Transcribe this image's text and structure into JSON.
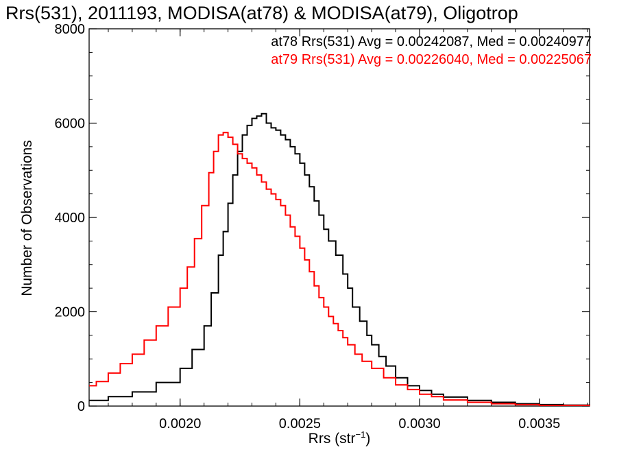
{
  "chart_data": {
    "type": "line",
    "title": "Rrs(531), 2011193, MODISA(at78) & MODISA(at79), Oligotrop",
    "xlabel_main": "Rrs (str",
    "xlabel_sup": "−1",
    "xlabel_tail": ")",
    "ylabel": "Number of Observations",
    "xlim": [
      0.00162,
      0.00371
    ],
    "ylim": [
      0,
      8000
    ],
    "xticks": [
      0.002,
      0.0025,
      0.003,
      0.0035
    ],
    "xtick_labels": [
      "0.0020",
      "0.0025",
      "0.0030",
      "0.0035"
    ],
    "yticks": [
      0,
      2000,
      4000,
      6000,
      8000
    ],
    "ytick_labels": [
      "0",
      "2000",
      "4000",
      "6000",
      "8000"
    ],
    "stats": [
      {
        "text": "at78 Rrs(531) Avg = 0.00242087, Med = 0.00240977",
        "color": "#000000"
      },
      {
        "text": "at79 Rrs(531) Avg = 0.00226040, Med = 0.00225067",
        "color": "#ff0000"
      }
    ],
    "series": [
      {
        "color": "#000000",
        "x": [
          0.00162,
          0.0017,
          0.0018,
          0.0019,
          0.002,
          0.00205,
          0.0021,
          0.00213,
          0.00216,
          0.00218,
          0.0022,
          0.00222,
          0.00224,
          0.00226,
          0.00228,
          0.0023,
          0.00232,
          0.00234,
          0.00236,
          0.00238,
          0.0024,
          0.00242,
          0.00244,
          0.00246,
          0.00248,
          0.0025,
          0.00252,
          0.00254,
          0.00256,
          0.00258,
          0.0026,
          0.00262,
          0.00265,
          0.00268,
          0.0027,
          0.00272,
          0.00275,
          0.00278,
          0.0028,
          0.00283,
          0.00286,
          0.0029,
          0.00295,
          0.003,
          0.00305,
          0.0031,
          0.0032,
          0.0033,
          0.0034,
          0.0035,
          0.0036,
          0.00371
        ],
        "values": [
          120,
          200,
          300,
          500,
          800,
          1200,
          1700,
          2400,
          3200,
          3700,
          4300,
          4900,
          5400,
          5750,
          5950,
          6100,
          6150,
          6200,
          6000,
          5900,
          5850,
          5750,
          5650,
          5500,
          5350,
          5150,
          4900,
          4650,
          4350,
          4050,
          3750,
          3500,
          3200,
          2800,
          2500,
          2100,
          1800,
          1500,
          1300,
          1050,
          850,
          600,
          430,
          330,
          250,
          190,
          120,
          80,
          50,
          30,
          20,
          10
        ]
      },
      {
        "color": "#ff0000",
        "x": [
          0.00162,
          0.00165,
          0.0017,
          0.00175,
          0.0018,
          0.00185,
          0.0019,
          0.00195,
          0.002,
          0.00203,
          0.00206,
          0.00209,
          0.00212,
          0.00214,
          0.00216,
          0.00218,
          0.0022,
          0.00222,
          0.00224,
          0.00226,
          0.00228,
          0.0023,
          0.00232,
          0.00234,
          0.00236,
          0.00238,
          0.0024,
          0.00242,
          0.00244,
          0.00246,
          0.00248,
          0.0025,
          0.00252,
          0.00254,
          0.00256,
          0.00258,
          0.0026,
          0.00262,
          0.00264,
          0.00266,
          0.00268,
          0.0027,
          0.00273,
          0.00276,
          0.0028,
          0.00285,
          0.0029,
          0.00295,
          0.003,
          0.00305,
          0.0031,
          0.0032,
          0.0033,
          0.0034,
          0.0035,
          0.00371
        ],
        "values": [
          430,
          520,
          700,
          900,
          1100,
          1400,
          1700,
          2100,
          2500,
          2950,
          3550,
          4250,
          4950,
          5400,
          5750,
          5800,
          5700,
          5550,
          5350,
          5250,
          5150,
          5050,
          4900,
          4750,
          4600,
          4500,
          4380,
          4250,
          4050,
          3800,
          3600,
          3350,
          3100,
          2850,
          2550,
          2300,
          2100,
          1900,
          1750,
          1600,
          1450,
          1300,
          1100,
          950,
          800,
          600,
          450,
          350,
          250,
          200,
          130,
          80,
          50,
          30,
          15,
          8
        ]
      }
    ]
  }
}
